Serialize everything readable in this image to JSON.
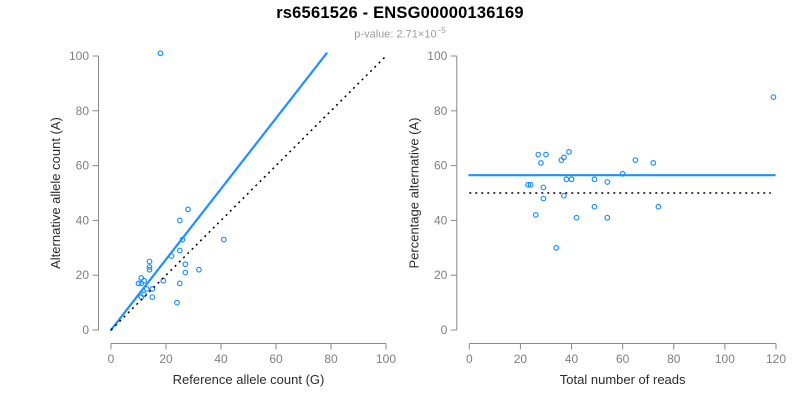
{
  "header": {
    "title": "rs6561526 - ENSG00000136169",
    "subtitle_prefix": "p-value: ",
    "subtitle_mantissa": "2.71×10",
    "subtitle_exponent": "−5"
  },
  "colors": {
    "accent_blue": "#1E90FF",
    "dotted_black": "#000000",
    "axis_gray": "#888888",
    "tick_label_gray": "#7f7f7f",
    "axis_title_dark": "#2b2b2b",
    "subtitle_gray": "#9b9b9b"
  },
  "chart_data": [
    {
      "type": "scatter",
      "name": "allele-counts-scatter",
      "xlabel": "Reference allele count (G)",
      "ylabel": "Alternative allele count (A)",
      "xlim": [
        0,
        100
      ],
      "ylim": [
        0,
        100
      ],
      "xticks": [
        0,
        20,
        40,
        60,
        80,
        100
      ],
      "yticks": [
        0,
        20,
        40,
        60,
        80,
        100
      ],
      "grid": false,
      "points": [
        [
          18,
          101
        ],
        [
          28,
          44
        ],
        [
          25,
          40
        ],
        [
          26,
          33
        ],
        [
          41,
          33
        ],
        [
          25,
          29
        ],
        [
          22,
          27
        ],
        [
          27,
          24
        ],
        [
          14,
          25
        ],
        [
          14,
          23
        ],
        [
          14,
          22
        ],
        [
          27,
          21
        ],
        [
          32,
          22
        ],
        [
          19,
          18
        ],
        [
          25,
          17
        ],
        [
          11,
          19
        ],
        [
          12,
          18
        ],
        [
          10,
          17
        ],
        [
          11,
          17
        ],
        [
          13,
          15
        ],
        [
          15,
          15
        ],
        [
          12,
          13
        ],
        [
          11,
          12
        ],
        [
          15,
          12
        ],
        [
          24,
          10
        ]
      ],
      "lines": [
        {
          "name": "regression-line",
          "style": "solid",
          "color_key": "accent_blue",
          "x1": 0,
          "y1": 0,
          "x2": 78.4,
          "y2": 101
        },
        {
          "name": "identity-line",
          "style": "dotted",
          "color_key": "dotted_black",
          "x1": 0,
          "y1": 0,
          "x2": 100,
          "y2": 100
        }
      ]
    },
    {
      "type": "scatter",
      "name": "percentage-vs-reads-scatter",
      "xlabel": "Total number of reads",
      "ylabel": "Percentage alternative (A)",
      "xlim": [
        0,
        120
      ],
      "ylim": [
        0,
        100
      ],
      "xticks": [
        0,
        20,
        40,
        60,
        80,
        100,
        120
      ],
      "yticks": [
        0,
        20,
        40,
        60,
        80,
        100
      ],
      "grid": false,
      "points": [
        [
          119,
          85
        ],
        [
          27,
          64
        ],
        [
          30,
          64
        ],
        [
          28,
          61
        ],
        [
          36,
          62
        ],
        [
          37,
          63
        ],
        [
          39,
          65
        ],
        [
          65,
          62
        ],
        [
          72,
          61
        ],
        [
          60,
          57
        ],
        [
          38,
          55
        ],
        [
          40,
          55
        ],
        [
          49,
          55
        ],
        [
          54,
          54
        ],
        [
          23,
          53
        ],
        [
          24,
          53
        ],
        [
          29,
          52
        ],
        [
          29,
          48
        ],
        [
          37,
          49
        ],
        [
          49,
          45
        ],
        [
          74,
          45
        ],
        [
          26,
          42
        ],
        [
          42,
          41
        ],
        [
          54,
          41
        ],
        [
          34,
          30
        ]
      ],
      "lines": [
        {
          "name": "mean-percentage-line",
          "style": "solid",
          "color_key": "accent_blue",
          "x1": 0,
          "y1": 56.5,
          "x2": 119.5,
          "y2": 56.5
        },
        {
          "name": "fifty-percent-line",
          "style": "dotted",
          "color_key": "dotted_black",
          "x1": 0,
          "y1": 50,
          "x2": 118,
          "y2": 50
        }
      ]
    }
  ]
}
